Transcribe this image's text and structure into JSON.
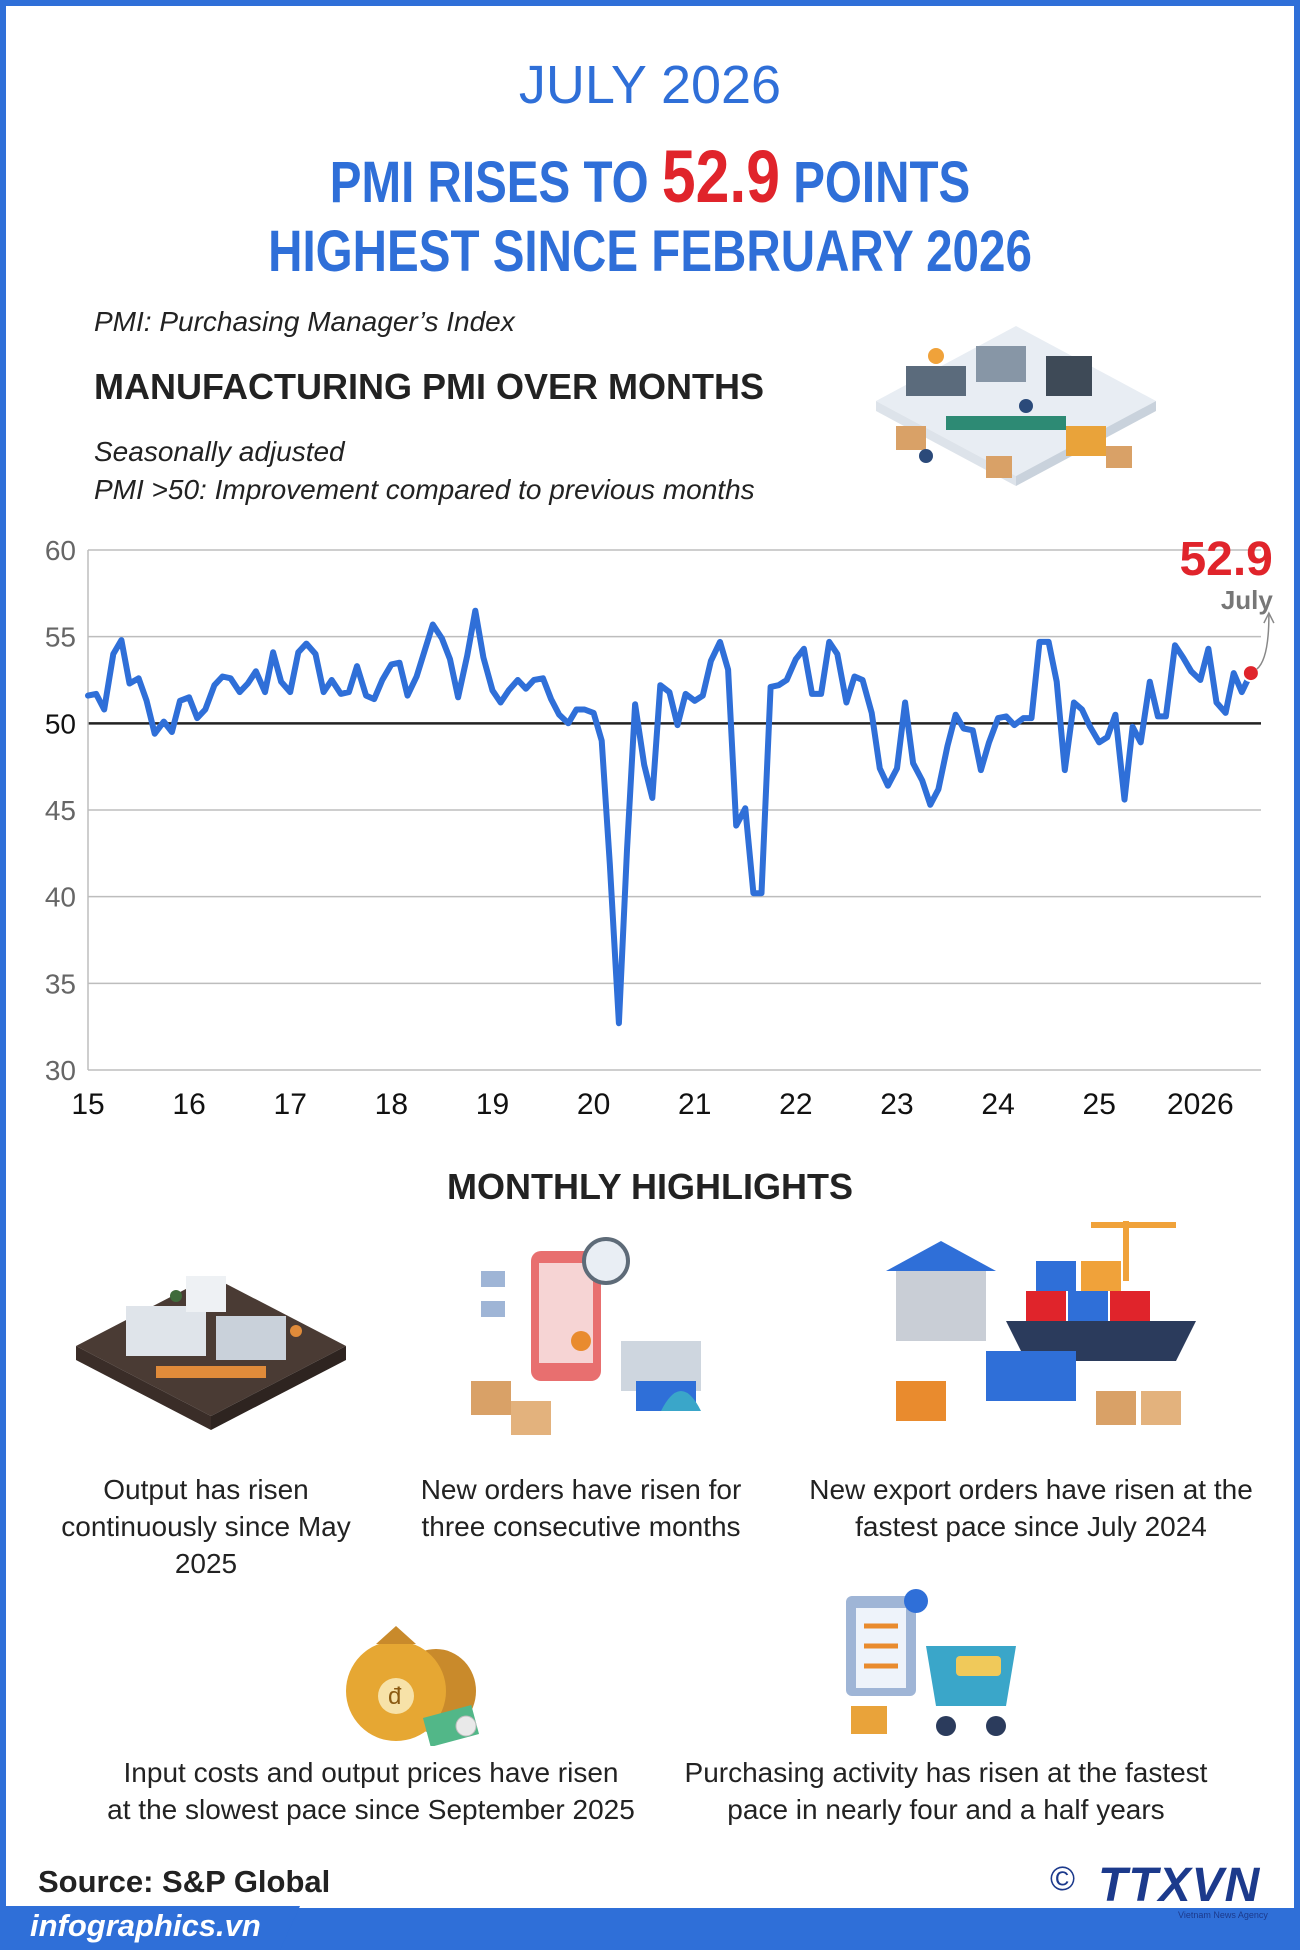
{
  "header": {
    "month": "JULY 2026",
    "headline_prefix": "PMI RISES TO",
    "headline_value": "52.9",
    "headline_suffix": "POINTS",
    "subhead": "HIGHEST SINCE FEBRUARY 2026"
  },
  "definition": "PMI: Purchasing Manager’s Index",
  "section_title": "MANUFACTURING PMI OVER MONTHS",
  "notes": {
    "seasonal": "Seasonally adjusted",
    "rule": "PMI >50: Improvement compared to previous months"
  },
  "colors": {
    "blue": "#2f6fd8",
    "red": "#e0242b",
    "dark": "#222222",
    "grid": "#bdbdbd"
  },
  "chart_data": {
    "type": "line",
    "ylim": [
      30,
      60
    ],
    "yticks": [
      30,
      35,
      40,
      45,
      50,
      55,
      60
    ],
    "emphasized_tick": 50,
    "xlim": [
      2015,
      2026.6
    ],
    "xticks": [
      {
        "label": "15",
        "x": 2015
      },
      {
        "label": "16",
        "x": 2016
      },
      {
        "label": "17",
        "x": 2017
      },
      {
        "label": "18",
        "x": 2018
      },
      {
        "label": "19",
        "x": 2019
      },
      {
        "label": "20",
        "x": 2020
      },
      {
        "label": "21",
        "x": 2021
      },
      {
        "label": "22",
        "x": 2022
      },
      {
        "label": "23",
        "x": 2023
      },
      {
        "label": "24",
        "x": 2024
      },
      {
        "label": "25",
        "x": 2025
      },
      {
        "label": "2026",
        "x": 2026
      }
    ],
    "grid": true,
    "series": [
      {
        "color": "#2f6fd8",
        "points": [
          [
            2015.0,
            51.6
          ],
          [
            2015.08,
            51.7
          ],
          [
            2015.16,
            50.8
          ],
          [
            2015.25,
            54.0
          ],
          [
            2015.33,
            54.8
          ],
          [
            2015.41,
            52.3
          ],
          [
            2015.5,
            52.6
          ],
          [
            2015.58,
            51.3
          ],
          [
            2015.66,
            49.4
          ],
          [
            2015.75,
            50.1
          ],
          [
            2015.83,
            49.5
          ],
          [
            2015.91,
            51.3
          ],
          [
            2016.0,
            51.5
          ],
          [
            2016.08,
            50.3
          ],
          [
            2016.16,
            50.8
          ],
          [
            2016.25,
            52.2
          ],
          [
            2016.33,
            52.7
          ],
          [
            2016.41,
            52.6
          ],
          [
            2016.5,
            51.8
          ],
          [
            2016.58,
            52.3
          ],
          [
            2016.66,
            53.0
          ],
          [
            2016.75,
            51.8
          ],
          [
            2016.83,
            54.1
          ],
          [
            2016.91,
            52.4
          ],
          [
            2017.0,
            51.8
          ],
          [
            2017.08,
            54.1
          ],
          [
            2017.16,
            54.6
          ],
          [
            2017.25,
            54.0
          ],
          [
            2017.33,
            51.8
          ],
          [
            2017.41,
            52.5
          ],
          [
            2017.5,
            51.7
          ],
          [
            2017.58,
            51.8
          ],
          [
            2017.66,
            53.3
          ],
          [
            2017.75,
            51.6
          ],
          [
            2017.83,
            51.4
          ],
          [
            2017.91,
            52.5
          ],
          [
            2018.0,
            53.4
          ],
          [
            2018.08,
            53.5
          ],
          [
            2018.16,
            51.6
          ],
          [
            2018.25,
            52.7
          ],
          [
            2018.33,
            54.2
          ],
          [
            2018.41,
            55.7
          ],
          [
            2018.5,
            54.9
          ],
          [
            2018.58,
            53.7
          ],
          [
            2018.66,
            51.5
          ],
          [
            2018.75,
            53.9
          ],
          [
            2018.83,
            56.5
          ],
          [
            2018.91,
            53.8
          ],
          [
            2019.0,
            51.9
          ],
          [
            2019.08,
            51.2
          ],
          [
            2019.16,
            51.9
          ],
          [
            2019.25,
            52.5
          ],
          [
            2019.33,
            52.0
          ],
          [
            2019.41,
            52.5
          ],
          [
            2019.5,
            52.6
          ],
          [
            2019.58,
            51.4
          ],
          [
            2019.66,
            50.5
          ],
          [
            2019.75,
            50.0
          ],
          [
            2019.83,
            50.8
          ],
          [
            2019.91,
            50.8
          ],
          [
            2020.0,
            50.6
          ],
          [
            2020.08,
            49.0
          ],
          [
            2020.16,
            41.9
          ],
          [
            2020.25,
            32.7
          ],
          [
            2020.33,
            42.7
          ],
          [
            2020.41,
            51.1
          ],
          [
            2020.5,
            47.6
          ],
          [
            2020.58,
            45.7
          ],
          [
            2020.66,
            52.2
          ],
          [
            2020.75,
            51.8
          ],
          [
            2020.83,
            49.9
          ],
          [
            2020.91,
            51.7
          ],
          [
            2021.0,
            51.3
          ],
          [
            2021.08,
            51.6
          ],
          [
            2021.16,
            53.6
          ],
          [
            2021.25,
            54.7
          ],
          [
            2021.33,
            53.1
          ],
          [
            2021.41,
            44.1
          ],
          [
            2021.5,
            45.1
          ],
          [
            2021.58,
            40.2
          ],
          [
            2021.66,
            40.2
          ],
          [
            2021.75,
            52.1
          ],
          [
            2021.83,
            52.2
          ],
          [
            2021.91,
            52.5
          ],
          [
            2022.0,
            53.7
          ],
          [
            2022.08,
            54.3
          ],
          [
            2022.16,
            51.7
          ],
          [
            2022.25,
            51.7
          ],
          [
            2022.33,
            54.7
          ],
          [
            2022.41,
            54.0
          ],
          [
            2022.5,
            51.2
          ],
          [
            2022.58,
            52.7
          ],
          [
            2022.66,
            52.5
          ],
          [
            2022.75,
            50.6
          ],
          [
            2022.83,
            47.4
          ],
          [
            2022.91,
            46.4
          ],
          [
            2023.0,
            47.4
          ],
          [
            2023.08,
            51.2
          ],
          [
            2023.16,
            47.7
          ],
          [
            2023.25,
            46.7
          ],
          [
            2023.33,
            45.3
          ],
          [
            2023.41,
            46.2
          ],
          [
            2023.5,
            48.7
          ],
          [
            2023.58,
            50.5
          ],
          [
            2023.66,
            49.7
          ],
          [
            2023.75,
            49.6
          ],
          [
            2023.83,
            47.3
          ],
          [
            2023.91,
            48.9
          ],
          [
            2024.0,
            50.3
          ],
          [
            2024.08,
            50.4
          ],
          [
            2024.16,
            49.9
          ],
          [
            2024.25,
            50.3
          ],
          [
            2024.33,
            50.3
          ],
          [
            2024.41,
            54.7
          ],
          [
            2024.5,
            54.7
          ],
          [
            2024.58,
            52.4
          ],
          [
            2024.66,
            47.3
          ],
          [
            2024.75,
            51.2
          ],
          [
            2024.83,
            50.8
          ],
          [
            2024.91,
            49.8
          ],
          [
            2025.0,
            48.9
          ],
          [
            2025.08,
            49.2
          ],
          [
            2025.16,
            50.5
          ],
          [
            2025.25,
            45.6
          ],
          [
            2025.33,
            49.8
          ],
          [
            2025.41,
            48.9
          ],
          [
            2025.5,
            52.4
          ],
          [
            2025.58,
            50.4
          ],
          [
            2025.66,
            50.4
          ],
          [
            2025.75,
            54.5
          ],
          [
            2025.83,
            53.8
          ],
          [
            2025.91,
            53.0
          ],
          [
            2026.0,
            52.5
          ],
          [
            2026.08,
            54.3
          ],
          [
            2026.16,
            51.2
          ],
          [
            2026.25,
            50.6
          ],
          [
            2026.33,
            52.9
          ],
          [
            2026.41,
            51.8
          ],
          [
            2026.5,
            52.9
          ]
        ]
      }
    ],
    "annotation": {
      "value": "52.9",
      "label": "July",
      "x": 2026.5,
      "y": 52.9,
      "color": "#e0242b"
    }
  },
  "highlights_title": "MONTHLY HIGHLIGHTS",
  "highlights": [
    {
      "icon": "factory-line-icon",
      "text": [
        "Output has risen",
        "continuously since May",
        "2025"
      ]
    },
    {
      "icon": "orders-delivery-icon",
      "text": [
        "New orders  have risen for",
        "three consecutive months"
      ]
    },
    {
      "icon": "export-port-icon",
      "text": [
        "New export orders have risen at the",
        "fastest pace since July 2024"
      ]
    },
    {
      "icon": "money-bags-icon",
      "text": [
        "Input costs and output prices have risen",
        "at the slowest pace since September 2025"
      ]
    },
    {
      "icon": "purchasing-cart-icon",
      "text": [
        "Purchasing activity has risen at the fastest",
        "pace in nearly four and a half years"
      ]
    }
  ],
  "source": "Source: S&P Global",
  "footer": {
    "site": "infographics.vn",
    "copyright_symbol": "©",
    "logo_text": "TTXVN",
    "logo_sub": "Vietnam News Agency"
  }
}
